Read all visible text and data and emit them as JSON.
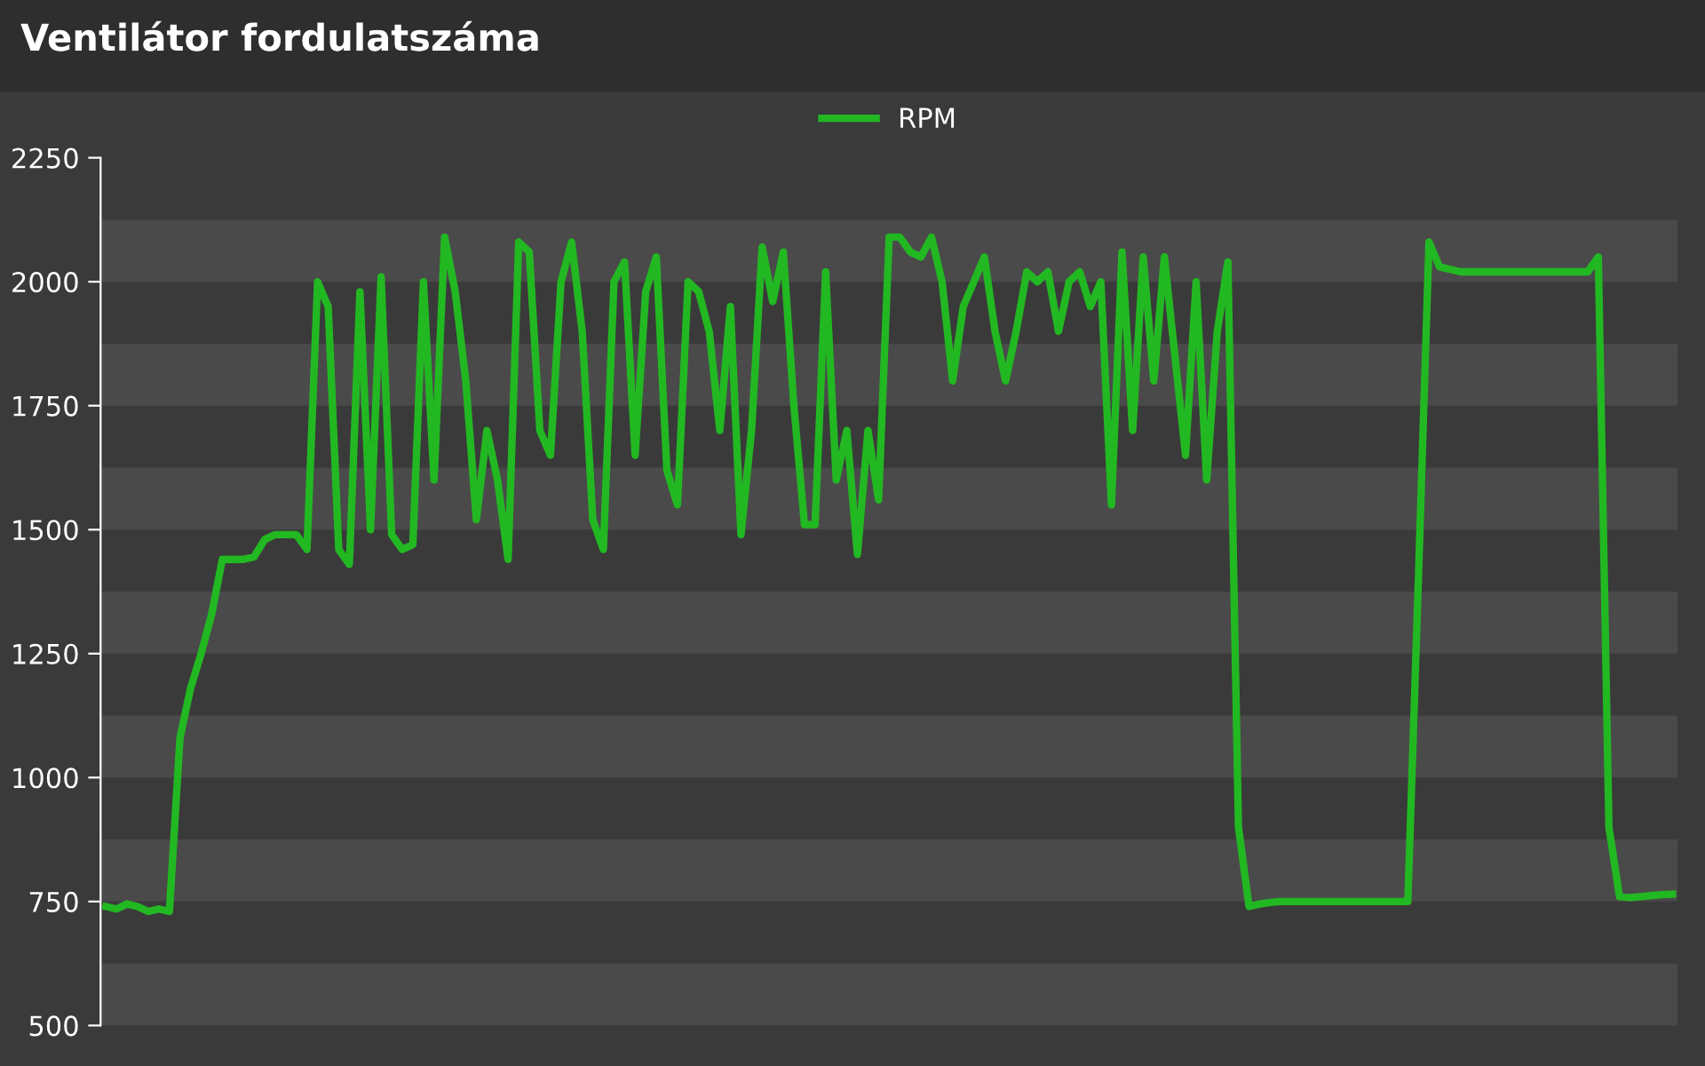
{
  "chart_data": {
    "type": "line",
    "title": "Ventilátor fordulatszáma",
    "categories": [
      null,
      null,
      null,
      null,
      null,
      null,
      null,
      null,
      null,
      null,
      null,
      null,
      null,
      null,
      null,
      null,
      null,
      null,
      null,
      null,
      null,
      null,
      null,
      null,
      null,
      null,
      null,
      null,
      null,
      null,
      null,
      null,
      null,
      null,
      null,
      null,
      null,
      null,
      null,
      null,
      null,
      null,
      null,
      null,
      null,
      null,
      null,
      null,
      null,
      null,
      null,
      null,
      null,
      null,
      null,
      null,
      null,
      null,
      null,
      null,
      null,
      null,
      null,
      null,
      null,
      null,
      null,
      null,
      null,
      null,
      null,
      null,
      null,
      null,
      null,
      null,
      null,
      null,
      null,
      null,
      null,
      null,
      null,
      null,
      null,
      null,
      null,
      null,
      null,
      null,
      null,
      null,
      null,
      null,
      null,
      null,
      null,
      null,
      null,
      null,
      null,
      null,
      null,
      null,
      null,
      null,
      null,
      null,
      null,
      null,
      null,
      null,
      null,
      null,
      null,
      null,
      null,
      null,
      null,
      null,
      null,
      null,
      null,
      null,
      null,
      null,
      null,
      null,
      null,
      null,
      null,
      null,
      null,
      null,
      null,
      null,
      null,
      null,
      null,
      null,
      null,
      null,
      null,
      null,
      null,
      null,
      null,
      null,
      null
    ],
    "series": [
      {
        "name": "RPM",
        "color": "#22b822",
        "values": [
          740,
          735,
          745,
          740,
          730,
          735,
          730,
          1080,
          1180,
          1250,
          1330,
          1440,
          1440,
          1440,
          1445,
          1480,
          1490,
          1490,
          1490,
          1460,
          2000,
          1950,
          1460,
          1430,
          1980,
          1500,
          2010,
          1490,
          1460,
          1470,
          2000,
          1600,
          2090,
          1980,
          1800,
          1520,
          1700,
          1600,
          1440,
          2080,
          2060,
          1700,
          1650,
          2000,
          2080,
          1900,
          1520,
          1460,
          2000,
          2040,
          1650,
          1980,
          2050,
          1620,
          1550,
          2000,
          1980,
          1900,
          1700,
          1950,
          1490,
          1700,
          2070,
          1960,
          2060,
          1750,
          1510,
          1510,
          2020,
          1600,
          1700,
          1450,
          1700,
          1560,
          2090,
          2090,
          2060,
          2050,
          2090,
          2000,
          1800,
          1950,
          2000,
          2050,
          1900,
          1800,
          1900,
          2020,
          2000,
          2020,
          1900,
          2000,
          2020,
          1950,
          2000,
          1550,
          2060,
          1700,
          2050,
          1800,
          2050,
          1850,
          1650,
          2000,
          1600,
          1900,
          2040,
          900,
          740,
          745,
          748,
          750,
          750,
          750,
          750,
          750,
          750,
          750,
          750,
          750,
          750,
          750,
          750,
          750,
          1400,
          2080,
          2030,
          2025,
          2020,
          2020,
          2020,
          2020,
          2020,
          2020,
          2020,
          2020,
          2020,
          2020,
          2020,
          2020,
          2020,
          2050,
          900,
          760,
          758,
          760,
          762,
          764,
          765
        ]
      }
    ],
    "ylim": [
      500,
      2250
    ],
    "yticks": [
      500,
      750,
      1000,
      1250,
      1500,
      1750,
      2000,
      2250
    ],
    "bands": [
      {
        "axis": "y",
        "from": 500,
        "to": 625,
        "color": "#4a4a4a"
      },
      {
        "axis": "y",
        "from": 750,
        "to": 875,
        "color": "#4a4a4a"
      },
      {
        "axis": "y",
        "from": 1000,
        "to": 1125,
        "color": "#4a4a4a"
      },
      {
        "axis": "y",
        "from": 1250,
        "to": 1375,
        "color": "#4a4a4a"
      },
      {
        "axis": "y",
        "from": 1500,
        "to": 1625,
        "color": "#4a4a4a"
      },
      {
        "axis": "y",
        "from": 1750,
        "to": 1875,
        "color": "#4a4a4a"
      },
      {
        "axis": "y",
        "from": 2000,
        "to": 2125,
        "color": "#4a4a4a"
      }
    ],
    "legend": "top",
    "marker": "none",
    "line_style": "solid"
  }
}
